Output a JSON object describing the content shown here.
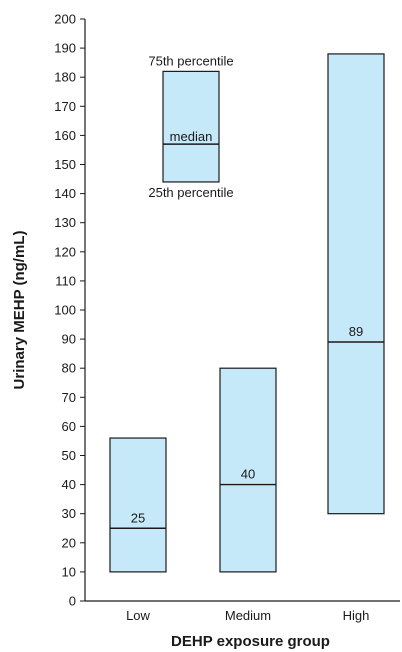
{
  "chart_data": {
    "type": "box",
    "title": "",
    "xlabel": "DEHP exposure group",
    "ylabel": "Urinary MEHP (ng/mL)",
    "ylim": [
      0,
      200
    ],
    "yticks": [
      0,
      10,
      20,
      30,
      40,
      50,
      60,
      70,
      80,
      90,
      100,
      110,
      120,
      130,
      140,
      150,
      160,
      170,
      180,
      190,
      200
    ],
    "categories": [
      "Low",
      "Medium",
      "High"
    ],
    "boxes": [
      {
        "category": "Low",
        "q1": 10,
        "median": 25,
        "q3": 56,
        "median_label": "25"
      },
      {
        "category": "Medium",
        "q1": 10,
        "median": 40,
        "q3": 80,
        "median_label": "40"
      },
      {
        "category": "High",
        "q1": 30,
        "median": 89,
        "q3": 188,
        "median_label": "89"
      }
    ],
    "legend": {
      "position": "top-left",
      "q1": 144,
      "median": 157,
      "q3": 182,
      "q3_label": "75th percentile",
      "median_label": "median",
      "q1_label": "25th percentile"
    },
    "colors": {
      "box_fill": "#c6e9fa",
      "box_stroke": "#1a1a1a",
      "text": "#1a1a1a"
    },
    "grid": false
  }
}
